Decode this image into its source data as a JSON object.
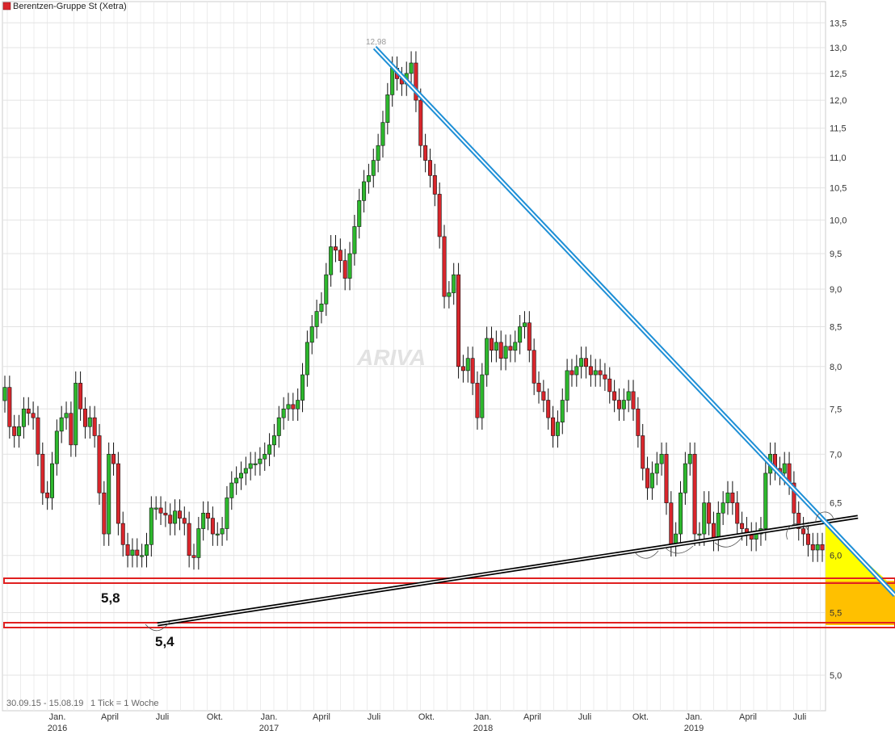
{
  "chart_data": {
    "type": "candlestick",
    "title": "Berentzen-Gruppe St (Xetra)",
    "date_range_label": "30.09.15 - 15.08.19",
    "tick_note": "1 Tick = 1 Woche",
    "watermark": "ARIVA",
    "peak_label": "12,98",
    "ylim": [
      4.6,
      13.6
    ],
    "y_scale": "log",
    "y_ticks": [
      "5,0",
      "5,5",
      "6,0",
      "6,5",
      "7,0",
      "7,5",
      "8,0",
      "8,5",
      "9,0",
      "9,5",
      "10,0",
      "10,5",
      "11,0",
      "11,5",
      "12,0",
      "12,5",
      "13,0",
      "13,5"
    ],
    "x_ticks": [
      {
        "label": "Jan.",
        "year": "2016"
      },
      {
        "label": "April",
        "year": ""
      },
      {
        "label": "Juli",
        "year": ""
      },
      {
        "label": "Okt.",
        "year": ""
      },
      {
        "label": "Jan.",
        "year": "2017"
      },
      {
        "label": "April",
        "year": ""
      },
      {
        "label": "Juli",
        "year": ""
      },
      {
        "label": "Okt.",
        "year": ""
      },
      {
        "label": "Jan.",
        "year": "2018"
      },
      {
        "label": "April",
        "year": ""
      },
      {
        "label": "Juli",
        "year": ""
      },
      {
        "label": "Okt.",
        "year": ""
      },
      {
        "label": "Jan.",
        "year": "2019"
      },
      {
        "label": "April",
        "year": ""
      },
      {
        "label": "Juli",
        "year": ""
      }
    ],
    "weekly_close": [
      7.75,
      7.3,
      7.2,
      7.3,
      7.5,
      7.45,
      7.4,
      7.0,
      6.6,
      6.55,
      6.9,
      7.25,
      7.4,
      7.45,
      7.1,
      7.8,
      7.5,
      7.3,
      7.4,
      7.2,
      6.6,
      6.2,
      7.0,
      6.9,
      6.3,
      6.1,
      6.0,
      6.05,
      6.0,
      6.0,
      6.1,
      6.45,
      6.45,
      6.4,
      6.38,
      6.3,
      6.42,
      6.35,
      6.3,
      6.0,
      5.98,
      6.25,
      6.4,
      6.35,
      6.2,
      6.2,
      6.25,
      6.55,
      6.7,
      6.75,
      6.8,
      6.85,
      6.9,
      6.9,
      6.95,
      7.0,
      7.1,
      7.2,
      7.4,
      7.5,
      7.55,
      7.5,
      7.6,
      7.9,
      8.3,
      8.5,
      8.7,
      8.8,
      9.2,
      9.6,
      9.55,
      9.4,
      9.15,
      9.5,
      9.9,
      10.3,
      10.6,
      10.7,
      10.95,
      11.2,
      11.6,
      12.1,
      12.6,
      12.4,
      12.3,
      12.5,
      12.7,
      12.0,
      11.2,
      10.95,
      10.7,
      10.4,
      9.75,
      8.9,
      8.95,
      9.2,
      8.0,
      7.95,
      8.1,
      7.8,
      7.4,
      7.9,
      8.35,
      8.2,
      8.3,
      8.1,
      8.25,
      8.2,
      8.3,
      8.5,
      8.55,
      8.2,
      7.8,
      7.7,
      7.6,
      7.4,
      7.2,
      7.35,
      7.6,
      7.95,
      7.9,
      8.0,
      8.1,
      8.0,
      7.9,
      7.95,
      7.9,
      7.85,
      7.7,
      7.6,
      7.5,
      7.6,
      7.7,
      7.5,
      7.2,
      6.85,
      6.65,
      6.8,
      6.9,
      7.0,
      6.5,
      6.1,
      6.2,
      6.6,
      6.9,
      7.0,
      6.2,
      6.2,
      6.5,
      6.3,
      6.15,
      6.4,
      6.5,
      6.6,
      6.5,
      6.3,
      6.25,
      6.2,
      6.15,
      6.2,
      6.25,
      6.8,
      7.0,
      6.85,
      6.8,
      6.9,
      6.7,
      6.4,
      6.25,
      6.2,
      6.1,
      6.05,
      6.1,
      6.05
    ]
  }
}
